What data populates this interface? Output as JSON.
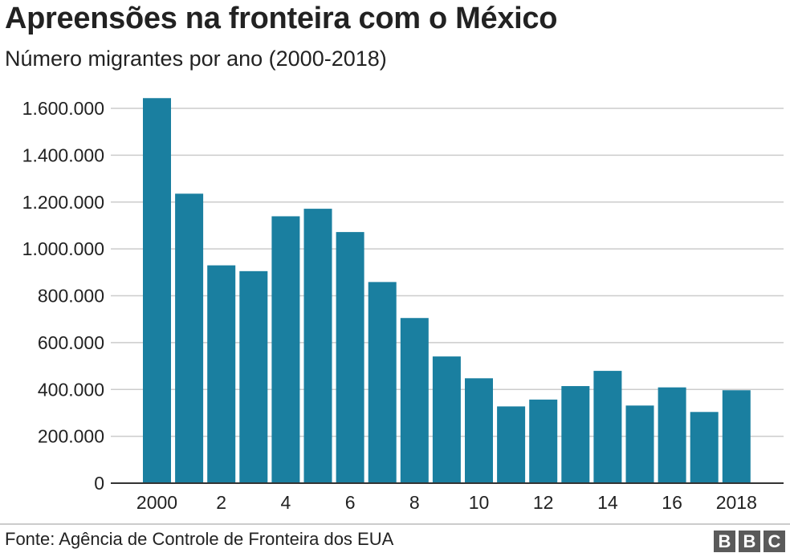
{
  "title": "Apreensões na fronteira com o México",
  "subtitle": "Número migrantes por ano (2000-2018)",
  "source": "Fonte: Agência de Controle de Fronteira dos EUA",
  "logo": [
    "B",
    "B",
    "C"
  ],
  "colors": {
    "bar": "#1a7fa0",
    "grid": "#cccccc",
    "axis": "#333333",
    "text": "#222222"
  },
  "chart_data": {
    "type": "bar",
    "categories": [
      "2000",
      "2001",
      "2002",
      "2003",
      "2004",
      "2005",
      "2006",
      "2007",
      "2008",
      "2009",
      "2010",
      "2011",
      "2012",
      "2013",
      "2014",
      "2015",
      "2016",
      "2017",
      "2018"
    ],
    "values": [
      1643679,
      1235718,
      929809,
      905065,
      1139282,
      1171396,
      1071972,
      858638,
      705005,
      540865,
      447731,
      327577,
      356873,
      414397,
      479371,
      331333,
      408870,
      303916,
      396579
    ],
    "x_tick_labels": [
      {
        "index": 0,
        "label": "2000"
      },
      {
        "index": 2,
        "label": "2"
      },
      {
        "index": 4,
        "label": "4"
      },
      {
        "index": 6,
        "label": "6"
      },
      {
        "index": 8,
        "label": "8"
      },
      {
        "index": 10,
        "label": "10"
      },
      {
        "index": 12,
        "label": "12"
      },
      {
        "index": 14,
        "label": "14"
      },
      {
        "index": 16,
        "label": "16"
      },
      {
        "index": 18,
        "label": "2018"
      }
    ],
    "y_ticks": [
      {
        "value": 0,
        "label": "0"
      },
      {
        "value": 200000,
        "label": "200.000"
      },
      {
        "value": 400000,
        "label": "400.000"
      },
      {
        "value": 600000,
        "label": "600.000"
      },
      {
        "value": 800000,
        "label": "800.000"
      },
      {
        "value": 1000000,
        "label": "1.000.000"
      },
      {
        "value": 1200000,
        "label": "1.200.000"
      },
      {
        "value": 1400000,
        "label": "1.400.000"
      },
      {
        "value": 1600000,
        "label": "1.600.000"
      }
    ],
    "ylim": [
      0,
      1600000
    ],
    "grid": true
  }
}
